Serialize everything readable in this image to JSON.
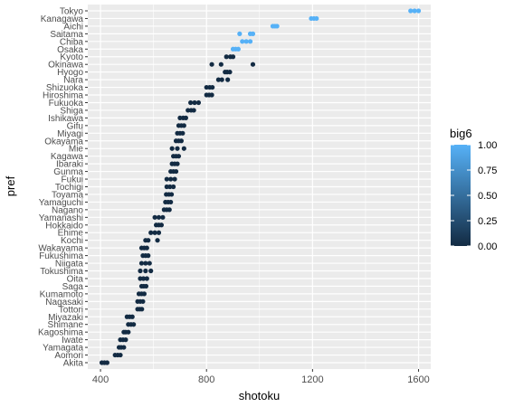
{
  "chart_data": {
    "type": "scatter",
    "xlabel": "shotoku",
    "ylabel": "pref",
    "xlim": [
      352,
      1646
    ],
    "x_ticks": [
      400,
      800,
      1200,
      1600
    ],
    "categories": [
      "Tokyo",
      "Kanagawa",
      "Aichi",
      "Saitama",
      "Chiba",
      "Osaka",
      "Kyoto",
      "Okinawa",
      "Hyogo",
      "Nara",
      "Shizuoka",
      "Hiroshima",
      "Fukuoka",
      "Shiga",
      "Ishikawa",
      "Gifu",
      "Miyagi",
      "Okayama",
      "Mie",
      "Kagawa",
      "Ibaraki",
      "Gunma",
      "Fukui",
      "Tochigi",
      "Toyama",
      "Yamaguchi",
      "Nagano",
      "Yamanashi",
      "Hokkaido",
      "Ehime",
      "Kochi",
      "Wakayama",
      "Fukushima",
      "Niigata",
      "Tokushima",
      "Oita",
      "Saga",
      "Kumamoto",
      "Nagasaki",
      "Tottori",
      "Miyazaki",
      "Shimane",
      "Kagoshima",
      "Iwate",
      "Yamagata",
      "Aomori",
      "Akita"
    ],
    "points": [
      {
        "pref": "Tokyo",
        "x": [
          1570,
          1585,
          1600
        ],
        "big6": 1
      },
      {
        "pref": "Kanagawa",
        "x": [
          1195,
          1205,
          1215
        ],
        "big6": 1
      },
      {
        "pref": "Aichi",
        "x": [
          1050,
          1058,
          1066
        ],
        "big6": 1
      },
      {
        "pref": "Saitama",
        "x": [
          925,
          965,
          975
        ],
        "big6": 1
      },
      {
        "pref": "Chiba",
        "x": [
          935,
          950,
          965
        ],
        "big6": 1
      },
      {
        "pref": "Osaka",
        "x": [
          900,
          910,
          920
        ],
        "big6": 1
      },
      {
        "pref": "Kyoto",
        "x": [
          875,
          890,
          900
        ],
        "big6": 0
      },
      {
        "pref": "Okinawa",
        "x": [
          820,
          855,
          975
        ],
        "big6": 0
      },
      {
        "pref": "Hyogo",
        "x": [
          870,
          878,
          888
        ],
        "big6": 0
      },
      {
        "pref": "Nara",
        "x": [
          845,
          858,
          880
        ],
        "big6": 0
      },
      {
        "pref": "Shizuoka",
        "x": [
          800,
          812,
          822
        ],
        "big6": 0
      },
      {
        "pref": "Hiroshima",
        "x": [
          800,
          810,
          820
        ],
        "big6": 0
      },
      {
        "pref": "Fukuoka",
        "x": [
          740,
          755,
          770
        ],
        "big6": 0
      },
      {
        "pref": "Shiga",
        "x": [
          730,
          742,
          752
        ],
        "big6": 0
      },
      {
        "pref": "Ishikawa",
        "x": [
          700,
          712,
          722
        ],
        "big6": 0
      },
      {
        "pref": "Gifu",
        "x": [
          695,
          705,
          715
        ],
        "big6": 0
      },
      {
        "pref": "Miyagi",
        "x": [
          690,
          700,
          710
        ],
        "big6": 0
      },
      {
        "pref": "Okayama",
        "x": [
          685,
          695,
          705
        ],
        "big6": 0
      },
      {
        "pref": "Mie",
        "x": [
          670,
          690,
          715
        ],
        "big6": 0
      },
      {
        "pref": "Kagawa",
        "x": [
          675,
          685,
          695
        ],
        "big6": 0
      },
      {
        "pref": "Ibaraki",
        "x": [
          670,
          680,
          690
        ],
        "big6": 0
      },
      {
        "pref": "Gunma",
        "x": [
          665,
          675,
          685
        ],
        "big6": 0
      },
      {
        "pref": "Fukui",
        "x": [
          650,
          665,
          680
        ],
        "big6": 0
      },
      {
        "pref": "Tochigi",
        "x": [
          650,
          662,
          675
        ],
        "big6": 0
      },
      {
        "pref": "Toyama",
        "x": [
          648,
          658,
          668
        ],
        "big6": 0
      },
      {
        "pref": "Yamaguchi",
        "x": [
          645,
          655,
          665
        ],
        "big6": 0
      },
      {
        "pref": "Nagano",
        "x": [
          640,
          650,
          660
        ],
        "big6": 0
      },
      {
        "pref": "Yamanashi",
        "x": [
          605,
          620,
          635
        ],
        "big6": 0
      },
      {
        "pref": "Hokkaido",
        "x": [
          610,
          620,
          630
        ],
        "big6": 0
      },
      {
        "pref": "Ehime",
        "x": [
          590,
          605,
          620
        ],
        "big6": 0
      },
      {
        "pref": "Kochi",
        "x": [
          570,
          580,
          615
        ],
        "big6": 0
      },
      {
        "pref": "Wakayama",
        "x": [
          555,
          565,
          575
        ],
        "big6": 0
      },
      {
        "pref": "Fukushima",
        "x": [
          560,
          570,
          580
        ],
        "big6": 0
      },
      {
        "pref": "Niigata",
        "x": [
          555,
          570,
          585
        ],
        "big6": 0
      },
      {
        "pref": "Tokushima",
        "x": [
          550,
          570,
          590
        ],
        "big6": 0
      },
      {
        "pref": "Oita",
        "x": [
          550,
          562,
          575
        ],
        "big6": 0
      },
      {
        "pref": "Saga",
        "x": [
          555,
          563,
          572
        ],
        "big6": 0
      },
      {
        "pref": "Kumamoto",
        "x": [
          545,
          555,
          565
        ],
        "big6": 0
      },
      {
        "pref": "Nagasaki",
        "x": [
          540,
          550,
          560
        ],
        "big6": 0
      },
      {
        "pref": "Tottori",
        "x": [
          540,
          548,
          556
        ],
        "big6": 0
      },
      {
        "pref": "Miyazaki",
        "x": [
          500,
          510,
          520
        ],
        "big6": 0
      },
      {
        "pref": "Shimane",
        "x": [
          505,
          515,
          525
        ],
        "big6": 0
      },
      {
        "pref": "Kagoshima",
        "x": [
          488,
          495,
          505
        ],
        "big6": 0
      },
      {
        "pref": "Iwate",
        "x": [
          475,
          485,
          495
        ],
        "big6": 0
      },
      {
        "pref": "Yamagata",
        "x": [
          470,
          478,
          488
        ],
        "big6": 0
      },
      {
        "pref": "Aomori",
        "x": [
          455,
          465,
          475
        ],
        "big6": 0
      },
      {
        "pref": "Akita",
        "x": [
          405,
          415,
          425
        ],
        "big6": 0
      }
    ],
    "legend": {
      "title": "big6",
      "labels": [
        "1.00",
        "0.75",
        "0.50",
        "0.25",
        "0.00"
      ],
      "values": [
        1,
        0.75,
        0.5,
        0.25,
        0
      ],
      "low_color": "#132B43",
      "high_color": "#56B1F7",
      "placement": "right"
    },
    "panel_color": "#EBEBEB",
    "grid": true
  }
}
